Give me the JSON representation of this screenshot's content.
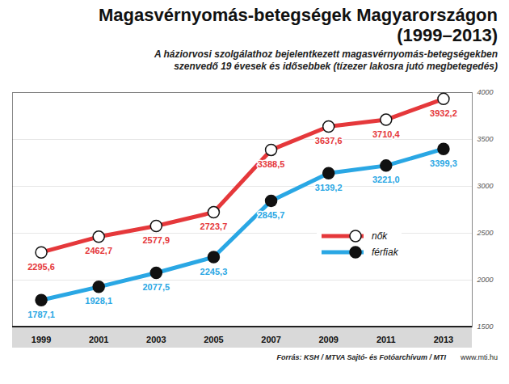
{
  "chart_data": {
    "type": "line",
    "title": "Magasvérnyomás-betegségek Magyarországon",
    "title_period": "(1999–2013)",
    "subtitle": "A háziorvosi szolgálathoz bejelentkezett magasvérnyomás-betegségekben szenvedő 19 évesek és idősebbek (tízezer lakosra jutó megbetegedés)",
    "source": "Forrás: KSH / MTVA Sajtó- és Fotóarchívum / MTI",
    "website": "www.mti.hu",
    "x": [
      1999,
      2001,
      2003,
      2005,
      2007,
      2009,
      2011,
      2013
    ],
    "xlim": [
      1998,
      2014
    ],
    "xticks": [
      1999,
      2001,
      2003,
      2005,
      2007,
      2009,
      2011,
      2013
    ],
    "ylim": [
      1500,
      4000
    ],
    "yticks": [
      1500,
      2000,
      2500,
      3000,
      3500,
      4000
    ],
    "grid": true,
    "legend": "lower right",
    "data_labels": true,
    "series": [
      {
        "name": "nők",
        "color": "#e5383b",
        "marker": "open circle",
        "values": [
          2295.6,
          2462.7,
          2577.9,
          2723.7,
          3388.5,
          3637.6,
          3710.4,
          3932.2
        ],
        "value_labels": [
          "2295,6",
          "2462,7",
          "2577,9",
          "2723,7",
          "3388,5",
          "3637,6",
          "3710,4",
          "3932,2"
        ]
      },
      {
        "name": "férfiak",
        "color": "#2aa7e4",
        "marker": "filled circle",
        "values": [
          1787.1,
          1928.1,
          2077.5,
          2245.3,
          2845.7,
          3139.2,
          3221.0,
          3399.3
        ],
        "value_labels": [
          "1787,1",
          "1928,1",
          "2077,5",
          "2245,3",
          "2845,7",
          "3139,2",
          "3221,0",
          "3399,3"
        ]
      }
    ]
  }
}
